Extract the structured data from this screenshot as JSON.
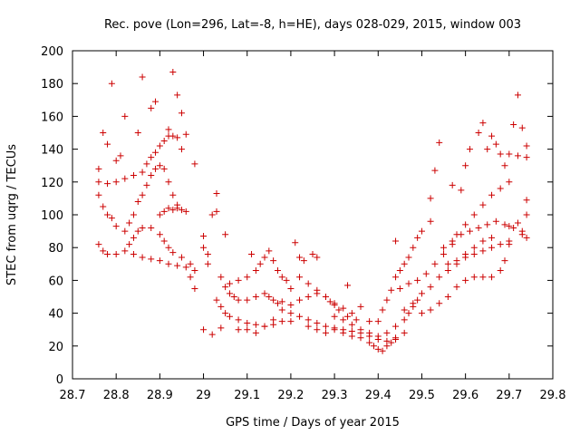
{
  "chart_data": {
    "type": "scatter",
    "title": "Rec. pove (Lon=296, Lat=-8, h=HE), days 028-029, 2015, window 003",
    "xlabel": "GPS time / Days of year 2015",
    "ylabel": "STEC from uqrg / TECUs",
    "xlim": [
      28.7,
      29.8
    ],
    "ylim": [
      0,
      200
    ],
    "x_ticks": [
      "28.7",
      "28.8",
      "28.9",
      "29",
      "29.1",
      "29.2",
      "29.3",
      "29.4",
      "29.5",
      "29.6",
      "29.7",
      "29.8"
    ],
    "y_ticks": [
      "0",
      "20",
      "40",
      "60",
      "80",
      "100",
      "120",
      "140",
      "160",
      "180",
      "200"
    ],
    "marker": "+",
    "color": "#cc0000",
    "grid": false,
    "series": [
      {
        "points": [
          [
            28.76,
            128
          ],
          [
            28.77,
            150
          ],
          [
            28.78,
            143
          ],
          [
            28.79,
            180
          ],
          [
            28.8,
            133
          ],
          [
            28.81,
            136
          ],
          [
            28.82,
            160
          ],
          [
            28.85,
            150
          ],
          [
            28.86,
            184
          ],
          [
            28.88,
            165
          ],
          [
            28.89,
            169
          ],
          [
            28.92,
            152
          ],
          [
            28.93,
            187
          ],
          [
            28.94,
            173
          ],
          [
            28.95,
            162
          ],
          [
            28.96,
            149
          ],
          [
            28.98,
            131
          ],
          [
            28.76,
            120
          ],
          [
            28.78,
            119
          ],
          [
            28.8,
            120
          ],
          [
            28.82,
            122
          ],
          [
            28.84,
            124
          ],
          [
            28.86,
            126
          ],
          [
            28.87,
            131
          ],
          [
            28.88,
            135
          ],
          [
            28.89,
            138
          ],
          [
            28.9,
            142
          ],
          [
            28.91,
            145
          ],
          [
            28.92,
            148
          ],
          [
            28.93,
            148
          ],
          [
            28.94,
            147
          ],
          [
            28.95,
            140
          ],
          [
            28.76,
            112
          ],
          [
            28.77,
            105
          ],
          [
            28.78,
            100
          ],
          [
            28.79,
            98
          ],
          [
            28.8,
            93
          ],
          [
            28.82,
            90
          ],
          [
            28.83,
            95
          ],
          [
            28.84,
            100
          ],
          [
            28.85,
            108
          ],
          [
            28.86,
            112
          ],
          [
            28.87,
            118
          ],
          [
            28.88,
            124
          ],
          [
            28.89,
            128
          ],
          [
            28.9,
            130
          ],
          [
            28.91,
            128
          ],
          [
            28.92,
            120
          ],
          [
            28.93,
            112
          ],
          [
            28.94,
            106
          ],
          [
            28.95,
            103
          ],
          [
            28.96,
            102
          ],
          [
            28.76,
            82
          ],
          [
            28.77,
            78
          ],
          [
            28.78,
            76
          ],
          [
            28.8,
            76
          ],
          [
            28.82,
            78
          ],
          [
            28.83,
            82
          ],
          [
            28.84,
            86
          ],
          [
            28.85,
            90
          ],
          [
            28.86,
            92
          ],
          [
            28.88,
            92
          ],
          [
            28.9,
            88
          ],
          [
            28.91,
            84
          ],
          [
            28.92,
            80
          ],
          [
            28.93,
            77
          ],
          [
            28.95,
            74
          ],
          [
            28.97,
            70
          ],
          [
            28.98,
            66
          ],
          [
            28.84,
            76
          ],
          [
            28.86,
            74
          ],
          [
            28.88,
            73
          ],
          [
            28.9,
            72
          ],
          [
            28.92,
            70
          ],
          [
            28.94,
            69
          ],
          [
            28.96,
            68
          ],
          [
            28.97,
            62
          ],
          [
            28.98,
            55
          ],
          [
            28.9,
            100
          ],
          [
            28.91,
            102
          ],
          [
            28.92,
            104
          ],
          [
            28.93,
            103
          ],
          [
            28.94,
            104
          ],
          [
            29.0,
            87
          ],
          [
            29.0,
            80
          ],
          [
            29.01,
            76
          ],
          [
            29.01,
            70
          ],
          [
            29.02,
            100
          ],
          [
            29.03,
            102
          ],
          [
            29.03,
            113
          ],
          [
            29.05,
            88
          ],
          [
            29.0,
            30
          ],
          [
            29.02,
            27
          ],
          [
            29.04,
            31
          ],
          [
            29.04,
            62
          ],
          [
            29.05,
            56
          ],
          [
            29.06,
            52
          ],
          [
            29.07,
            50
          ],
          [
            29.08,
            48
          ],
          [
            29.1,
            48
          ],
          [
            29.12,
            50
          ],
          [
            29.14,
            52
          ],
          [
            29.15,
            50
          ],
          [
            29.16,
            48
          ],
          [
            29.17,
            46
          ],
          [
            29.18,
            47
          ],
          [
            29.03,
            48
          ],
          [
            29.04,
            44
          ],
          [
            29.05,
            40
          ],
          [
            29.06,
            38
          ],
          [
            29.08,
            36
          ],
          [
            29.1,
            34
          ],
          [
            29.12,
            33
          ],
          [
            29.14,
            32
          ],
          [
            29.16,
            33
          ],
          [
            29.18,
            35
          ],
          [
            29.2,
            35
          ],
          [
            29.06,
            58
          ],
          [
            29.08,
            60
          ],
          [
            29.1,
            62
          ],
          [
            29.12,
            66
          ],
          [
            29.13,
            70
          ],
          [
            29.14,
            74
          ],
          [
            29.15,
            78
          ],
          [
            29.16,
            72
          ],
          [
            29.17,
            66
          ],
          [
            29.18,
            62
          ],
          [
            29.19,
            60
          ],
          [
            29.2,
            55
          ],
          [
            29.11,
            76
          ],
          [
            29.21,
            83
          ],
          [
            29.22,
            74
          ],
          [
            29.23,
            72
          ],
          [
            29.25,
            76
          ],
          [
            29.26,
            74
          ],
          [
            29.08,
            30
          ],
          [
            29.1,
            30
          ],
          [
            29.12,
            28
          ],
          [
            29.14,
            32
          ],
          [
            29.16,
            36
          ],
          [
            29.18,
            42
          ],
          [
            29.2,
            45
          ],
          [
            29.22,
            48
          ],
          [
            29.24,
            50
          ],
          [
            29.26,
            52
          ],
          [
            29.28,
            50
          ],
          [
            29.29,
            47
          ],
          [
            29.3,
            45
          ],
          [
            29.32,
            43
          ],
          [
            29.34,
            40
          ],
          [
            29.2,
            40
          ],
          [
            29.22,
            38
          ],
          [
            29.24,
            36
          ],
          [
            29.26,
            34
          ],
          [
            29.28,
            32
          ],
          [
            29.3,
            31
          ],
          [
            29.32,
            30
          ],
          [
            29.34,
            29
          ],
          [
            29.36,
            28
          ],
          [
            29.38,
            26
          ],
          [
            29.4,
            24
          ],
          [
            29.42,
            23
          ],
          [
            29.44,
            25
          ],
          [
            29.46,
            28
          ],
          [
            29.22,
            62
          ],
          [
            29.24,
            58
          ],
          [
            29.26,
            54
          ],
          [
            29.28,
            50
          ],
          [
            29.3,
            46
          ],
          [
            29.31,
            42
          ],
          [
            29.33,
            38
          ],
          [
            29.35,
            36
          ],
          [
            29.36,
            44
          ],
          [
            29.38,
            35
          ],
          [
            29.33,
            57
          ],
          [
            29.24,
            32
          ],
          [
            29.26,
            30
          ],
          [
            29.28,
            28
          ],
          [
            29.3,
            30
          ],
          [
            29.32,
            28
          ],
          [
            29.34,
            26
          ],
          [
            29.36,
            25
          ],
          [
            29.38,
            22
          ],
          [
            29.39,
            20
          ],
          [
            29.4,
            18
          ],
          [
            29.41,
            17
          ],
          [
            29.42,
            20
          ],
          [
            29.43,
            22
          ],
          [
            29.44,
            24
          ],
          [
            29.3,
            38
          ],
          [
            29.32,
            36
          ],
          [
            29.34,
            33
          ],
          [
            29.36,
            30
          ],
          [
            29.38,
            28
          ],
          [
            29.4,
            26
          ],
          [
            29.42,
            28
          ],
          [
            29.44,
            32
          ],
          [
            29.46,
            36
          ],
          [
            29.47,
            40
          ],
          [
            29.48,
            44
          ],
          [
            29.49,
            48
          ],
          [
            29.4,
            35
          ],
          [
            29.41,
            42
          ],
          [
            29.42,
            48
          ],
          [
            29.43,
            54
          ],
          [
            29.44,
            62
          ],
          [
            29.45,
            66
          ],
          [
            29.46,
            70
          ],
          [
            29.47,
            74
          ],
          [
            29.48,
            80
          ],
          [
            29.49,
            86
          ],
          [
            29.5,
            90
          ],
          [
            29.52,
            96
          ],
          [
            29.44,
            84
          ],
          [
            29.46,
            42
          ],
          [
            29.48,
            46
          ],
          [
            29.5,
            52
          ],
          [
            29.52,
            56
          ],
          [
            29.54,
            62
          ],
          [
            29.56,
            66
          ],
          [
            29.58,
            70
          ],
          [
            29.6,
            76
          ],
          [
            29.62,
            80
          ],
          [
            29.64,
            84
          ],
          [
            29.66,
            86
          ],
          [
            29.45,
            55
          ],
          [
            29.47,
            58
          ],
          [
            29.49,
            60
          ],
          [
            29.51,
            64
          ],
          [
            29.53,
            70
          ],
          [
            29.55,
            76
          ],
          [
            29.57,
            82
          ],
          [
            29.58,
            88
          ],
          [
            29.6,
            94
          ],
          [
            29.62,
            100
          ],
          [
            29.64,
            106
          ],
          [
            29.66,
            112
          ],
          [
            29.68,
            116
          ],
          [
            29.7,
            120
          ],
          [
            29.5,
            40
          ],
          [
            29.52,
            42
          ],
          [
            29.54,
            46
          ],
          [
            29.56,
            50
          ],
          [
            29.58,
            56
          ],
          [
            29.6,
            60
          ],
          [
            29.62,
            62
          ],
          [
            29.64,
            62
          ],
          [
            29.66,
            62
          ],
          [
            29.68,
            66
          ],
          [
            29.69,
            72
          ],
          [
            29.7,
            82
          ],
          [
            29.52,
            110
          ],
          [
            29.53,
            127
          ],
          [
            29.54,
            144
          ],
          [
            29.57,
            118
          ],
          [
            29.59,
            115
          ],
          [
            29.6,
            130
          ],
          [
            29.61,
            140
          ],
          [
            29.63,
            150
          ],
          [
            29.64,
            156
          ],
          [
            29.65,
            140
          ],
          [
            29.66,
            148
          ],
          [
            29.67,
            143
          ],
          [
            29.68,
            137
          ],
          [
            29.69,
            130
          ],
          [
            29.7,
            137
          ],
          [
            29.71,
            155
          ],
          [
            29.72,
            173
          ],
          [
            29.73,
            153
          ],
          [
            29.74,
            142
          ],
          [
            29.74,
            135
          ],
          [
            29.72,
            136
          ],
          [
            29.55,
            80
          ],
          [
            29.57,
            84
          ],
          [
            29.59,
            88
          ],
          [
            29.61,
            90
          ],
          [
            29.63,
            92
          ],
          [
            29.65,
            94
          ],
          [
            29.67,
            96
          ],
          [
            29.69,
            94
          ],
          [
            29.71,
            92
          ],
          [
            29.73,
            90
          ],
          [
            29.74,
            86
          ],
          [
            29.74,
            100
          ],
          [
            29.74,
            109
          ],
          [
            29.7,
            93
          ],
          [
            29.72,
            95
          ],
          [
            29.73,
            88
          ],
          [
            29.56,
            70
          ],
          [
            29.58,
            72
          ],
          [
            29.6,
            74
          ],
          [
            29.62,
            76
          ],
          [
            29.64,
            78
          ],
          [
            29.66,
            80
          ],
          [
            29.68,
            82
          ],
          [
            29.7,
            84
          ]
        ]
      }
    ]
  }
}
